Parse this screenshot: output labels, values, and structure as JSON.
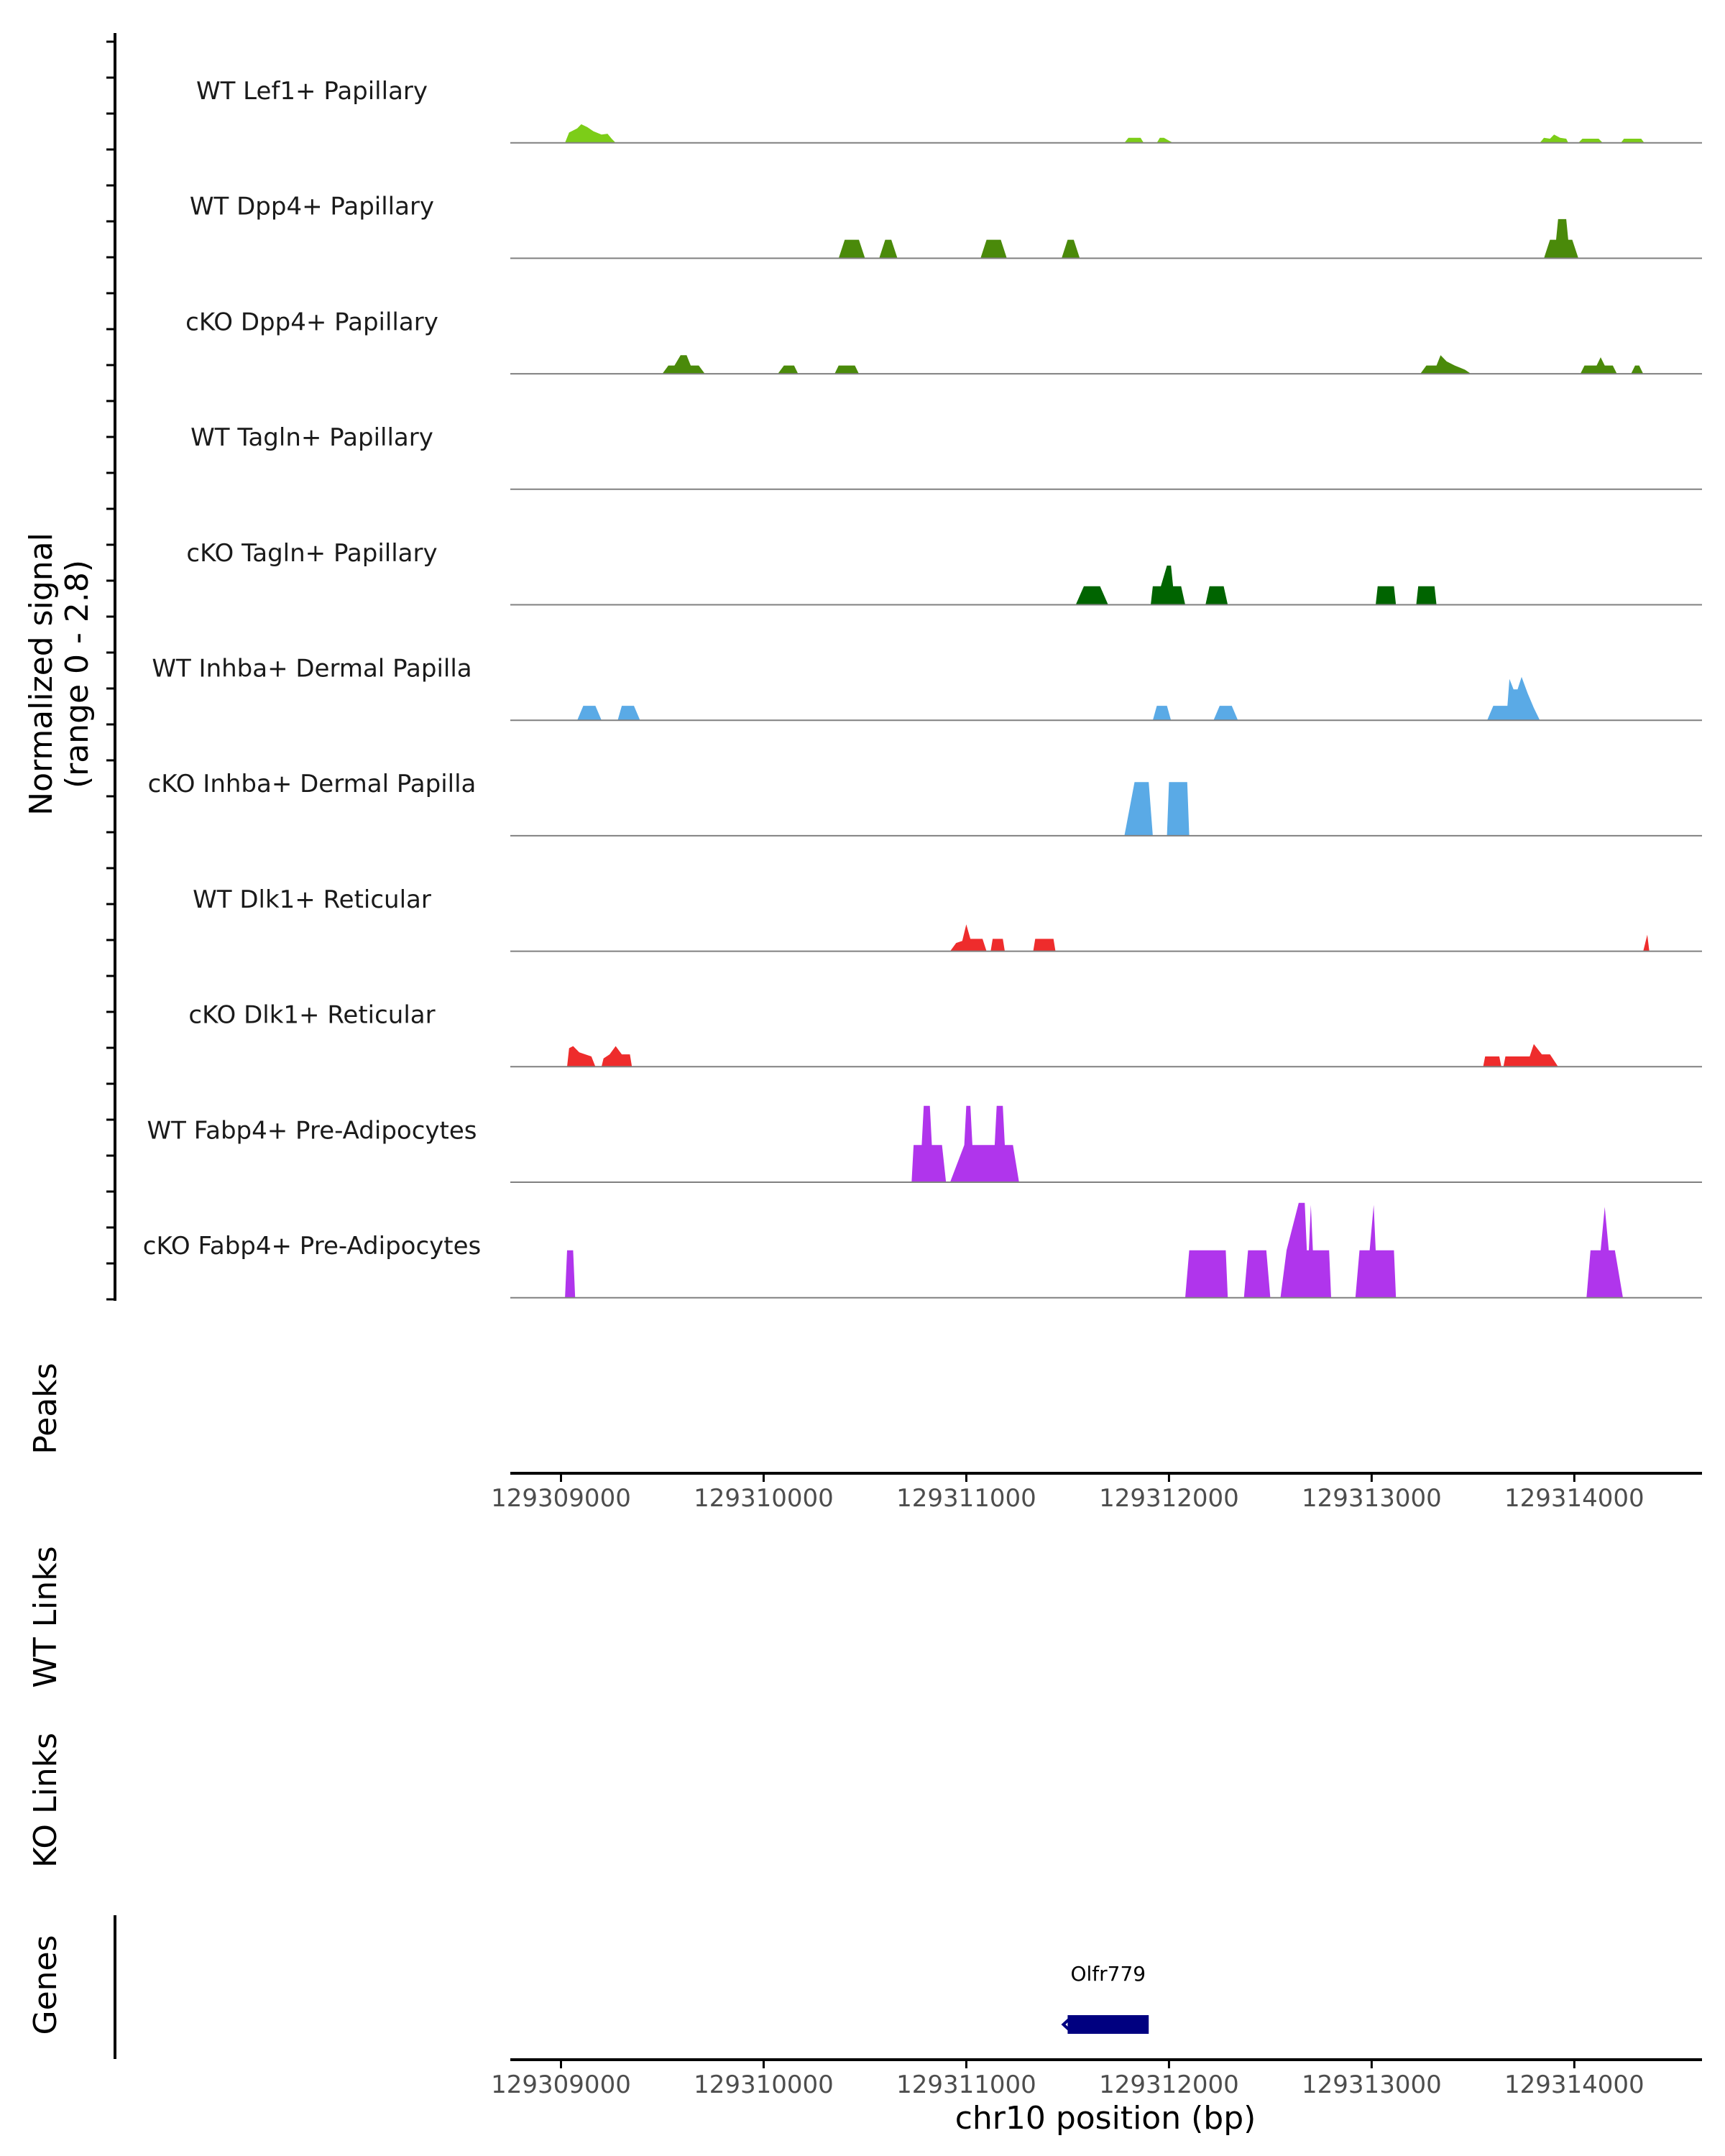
{
  "chart_data": {
    "type": "area",
    "title": "",
    "ylabel": "Normalized signal\n(range 0 - 2.8)",
    "ylim": [
      0,
      2.8
    ],
    "xlabel": "chr10 position (bp)",
    "xlim": [
      129308750,
      129314630
    ],
    "xticks": [
      129309000,
      129310000,
      129311000,
      129312000,
      129313000,
      129314000
    ],
    "xtick_labels": [
      "129309000",
      "129310000",
      "129311000",
      "129312000",
      "129313000",
      "129314000"
    ],
    "panel_labels": {
      "peaks": "Peaks",
      "wt_links": "WT Links",
      "ko_links": "KO Links",
      "genes": "Genes"
    },
    "tracks": [
      {
        "name": "WT Lef1+ Papillary",
        "color": "#7ccd18",
        "points": [
          [
            129309020,
            0
          ],
          [
            129309040,
            0.25
          ],
          [
            129309080,
            0.35
          ],
          [
            129309100,
            0.45
          ],
          [
            129309130,
            0.38
          ],
          [
            129309160,
            0.28
          ],
          [
            129309200,
            0.2
          ],
          [
            129309230,
            0.22
          ],
          [
            129309250,
            0.1
          ],
          [
            129309270,
            0
          ],
          [
            129311780,
            0
          ],
          [
            129311800,
            0.12
          ],
          [
            129311860,
            0.12
          ],
          [
            129311875,
            0
          ],
          [
            129311940,
            0
          ],
          [
            129311955,
            0.12
          ],
          [
            129311975,
            0.12
          ],
          [
            129312000,
            0.05
          ],
          [
            129312020,
            0
          ],
          [
            129313830,
            0
          ],
          [
            129313850,
            0.12
          ],
          [
            129313880,
            0.1
          ],
          [
            129313900,
            0.2
          ],
          [
            129313930,
            0.12
          ],
          [
            129313960,
            0.1
          ],
          [
            129313970,
            0
          ],
          [
            129314020,
            0
          ],
          [
            129314040,
            0.1
          ],
          [
            129314120,
            0.1
          ],
          [
            129314140,
            0
          ],
          [
            129314230,
            0
          ],
          [
            129314245,
            0.1
          ],
          [
            129314330,
            0.1
          ],
          [
            129314345,
            0
          ]
        ]
      },
      {
        "name": "WT Dpp4+ Papillary",
        "color": "#4a8a0a",
        "points": [
          [
            129310370,
            0
          ],
          [
            129310400,
            0.45
          ],
          [
            129310470,
            0.45
          ],
          [
            129310500,
            0
          ],
          [
            129310570,
            0
          ],
          [
            129310600,
            0.45
          ],
          [
            129310630,
            0.45
          ],
          [
            129310660,
            0
          ],
          [
            129311070,
            0
          ],
          [
            129311100,
            0.45
          ],
          [
            129311170,
            0.45
          ],
          [
            129311200,
            0
          ],
          [
            129311470,
            0
          ],
          [
            129311500,
            0.45
          ],
          [
            129311530,
            0.45
          ],
          [
            129311560,
            0
          ],
          [
            129313850,
            0
          ],
          [
            129313880,
            0.45
          ],
          [
            129313910,
            0.45
          ],
          [
            129313920,
            0.95
          ],
          [
            129313960,
            0.95
          ],
          [
            129313970,
            0.45
          ],
          [
            129313990,
            0.45
          ],
          [
            129314020,
            0
          ]
        ]
      },
      {
        "name": "cKO Dpp4+ Papillary",
        "color": "#4a8a0a",
        "points": [
          [
            129309500,
            0
          ],
          [
            129309530,
            0.2
          ],
          [
            129309560,
            0.2
          ],
          [
            129309590,
            0.45
          ],
          [
            129309620,
            0.45
          ],
          [
            129309640,
            0.2
          ],
          [
            129309680,
            0.2
          ],
          [
            129309710,
            0
          ],
          [
            129310070,
            0
          ],
          [
            129310100,
            0.2
          ],
          [
            129310150,
            0.2
          ],
          [
            129310170,
            0
          ],
          [
            129310350,
            0
          ],
          [
            129310370,
            0.2
          ],
          [
            129310450,
            0.2
          ],
          [
            129310470,
            0
          ],
          [
            129313240,
            0
          ],
          [
            129313270,
            0.2
          ],
          [
            129313320,
            0.2
          ],
          [
            129313340,
            0.45
          ],
          [
            129313370,
            0.3
          ],
          [
            129313410,
            0.2
          ],
          [
            129313460,
            0.1
          ],
          [
            129313490,
            0
          ],
          [
            129314030,
            0
          ],
          [
            129314050,
            0.2
          ],
          [
            129314110,
            0.2
          ],
          [
            129314130,
            0.4
          ],
          [
            129314150,
            0.2
          ],
          [
            129314190,
            0.2
          ],
          [
            129314210,
            0
          ],
          [
            129314280,
            0
          ],
          [
            129314300,
            0.2
          ],
          [
            129314320,
            0.2
          ],
          [
            129314340,
            0
          ]
        ]
      },
      {
        "name": "WT Tagln+ Papillary",
        "color": "#006400",
        "points": []
      },
      {
        "name": "cKO Tagln+ Papillary",
        "color": "#006400",
        "points": [
          [
            129311540,
            0
          ],
          [
            129311580,
            0.45
          ],
          [
            129311660,
            0.45
          ],
          [
            129311700,
            0
          ],
          [
            129311910,
            0
          ],
          [
            129311920,
            0.45
          ],
          [
            129311960,
            0.45
          ],
          [
            129311990,
            0.95
          ],
          [
            129312010,
            0.95
          ],
          [
            129312020,
            0.45
          ],
          [
            129312060,
            0.45
          ],
          [
            129312080,
            0
          ],
          [
            129312180,
            0
          ],
          [
            129312200,
            0.45
          ],
          [
            129312270,
            0.45
          ],
          [
            129312290,
            0
          ],
          [
            129313020,
            0
          ],
          [
            129313030,
            0.45
          ],
          [
            129313110,
            0.45
          ],
          [
            129313120,
            0
          ],
          [
            129313220,
            0
          ],
          [
            129313230,
            0.45
          ],
          [
            129313310,
            0.45
          ],
          [
            129313320,
            0
          ]
        ]
      },
      {
        "name": "WT Inhba+ Dermal Papilla",
        "color": "#5aaae6",
        "points": [
          [
            129309080,
            0
          ],
          [
            129309110,
            0.35
          ],
          [
            129309170,
            0.35
          ],
          [
            129309200,
            0
          ],
          [
            129309280,
            0
          ],
          [
            129309300,
            0.35
          ],
          [
            129309360,
            0.35
          ],
          [
            129309390,
            0
          ],
          [
            129311920,
            0
          ],
          [
            129311940,
            0.35
          ],
          [
            129311990,
            0.35
          ],
          [
            129312010,
            0
          ],
          [
            129312220,
            0
          ],
          [
            129312250,
            0.35
          ],
          [
            129312310,
            0.35
          ],
          [
            129312340,
            0
          ],
          [
            129313570,
            0
          ],
          [
            129313600,
            0.35
          ],
          [
            129313670,
            0.35
          ],
          [
            129313680,
            1.0
          ],
          [
            129313700,
            0.75
          ],
          [
            129313720,
            0.75
          ],
          [
            129313740,
            1.05
          ],
          [
            129313770,
            0.65
          ],
          [
            129313800,
            0.3
          ],
          [
            129313830,
            0
          ]
        ]
      },
      {
        "name": "cKO Inhba+ Dermal Papilla",
        "color": "#5aaae6",
        "points": [
          [
            129311780,
            0
          ],
          [
            129311830,
            1.3
          ],
          [
            129311900,
            1.3
          ],
          [
            129311920,
            0
          ],
          [
            129311990,
            0
          ],
          [
            129312000,
            1.3
          ],
          [
            129312090,
            1.3
          ],
          [
            129312100,
            0
          ]
        ]
      },
      {
        "name": "WT Dlk1+ Reticular",
        "color": "#ee2c2c",
        "points": [
          [
            129310920,
            0
          ],
          [
            129310950,
            0.2
          ],
          [
            129310980,
            0.25
          ],
          [
            129311000,
            0.65
          ],
          [
            129311020,
            0.3
          ],
          [
            129311080,
            0.3
          ],
          [
            129311100,
            0
          ],
          [
            129311120,
            0
          ],
          [
            129311130,
            0.3
          ],
          [
            129311180,
            0.3
          ],
          [
            129311190,
            0
          ],
          [
            129311330,
            0
          ],
          [
            129311340,
            0.3
          ],
          [
            129311430,
            0.3
          ],
          [
            129311440,
            0
          ],
          [
            129314340,
            0
          ],
          [
            129314360,
            0.4
          ],
          [
            129314370,
            0
          ]
        ]
      },
      {
        "name": "cKO Dlk1+ Reticular",
        "color": "#ee2c2c",
        "points": [
          [
            129309030,
            0
          ],
          [
            129309040,
            0.45
          ],
          [
            129309060,
            0.5
          ],
          [
            129309090,
            0.35
          ],
          [
            129309120,
            0.3
          ],
          [
            129309150,
            0.25
          ],
          [
            129309170,
            0
          ],
          [
            129309200,
            0
          ],
          [
            129309210,
            0.2
          ],
          [
            129309240,
            0.3
          ],
          [
            129309270,
            0.5
          ],
          [
            129309300,
            0.3
          ],
          [
            129309340,
            0.3
          ],
          [
            129309350,
            0
          ],
          [
            129313550,
            0
          ],
          [
            129313560,
            0.25
          ],
          [
            129313630,
            0.25
          ],
          [
            129313640,
            0
          ],
          [
            129313650,
            0
          ],
          [
            129313660,
            0.25
          ],
          [
            129313780,
            0.25
          ],
          [
            129313800,
            0.55
          ],
          [
            129313840,
            0.3
          ],
          [
            129313880,
            0.3
          ],
          [
            129313920,
            0
          ]
        ]
      },
      {
        "name": "WT Fabp4+ Pre-Adipocytes",
        "color": "#b035ec",
        "points": [
          [
            129310730,
            0
          ],
          [
            129310740,
            0.9
          ],
          [
            129310780,
            0.9
          ],
          [
            129310790,
            1.85
          ],
          [
            129310820,
            1.85
          ],
          [
            129310830,
            0.9
          ],
          [
            129310880,
            0.9
          ],
          [
            129310900,
            0
          ],
          [
            129310920,
            0
          ],
          [
            129310990,
            0.9
          ],
          [
            129311000,
            1.85
          ],
          [
            129311020,
            1.85
          ],
          [
            129311030,
            0.9
          ],
          [
            129311140,
            0.9
          ],
          [
            129311150,
            1.85
          ],
          [
            129311180,
            1.85
          ],
          [
            129311190,
            0.9
          ],
          [
            129311230,
            0.9
          ],
          [
            129311260,
            0
          ]
        ]
      },
      {
        "name": "cKO Fabp4+ Pre-Adipocytes",
        "color": "#b035ec",
        "points": [
          [
            129309020,
            0
          ],
          [
            129309030,
            1.15
          ],
          [
            129309060,
            1.15
          ],
          [
            129309070,
            0
          ],
          [
            129312080,
            0
          ],
          [
            129312100,
            1.15
          ],
          [
            129312280,
            1.15
          ],
          [
            129312290,
            0
          ],
          [
            129312370,
            0
          ],
          [
            129312390,
            1.15
          ],
          [
            129312480,
            1.15
          ],
          [
            129312500,
            0
          ],
          [
            129312550,
            0
          ],
          [
            129312580,
            1.15
          ],
          [
            129312640,
            2.3
          ],
          [
            129312670,
            2.3
          ],
          [
            129312680,
            1.15
          ],
          [
            129312690,
            1.15
          ],
          [
            129312700,
            2.25
          ],
          [
            129312710,
            1.15
          ],
          [
            129312790,
            1.15
          ],
          [
            129312800,
            0
          ],
          [
            129312920,
            0
          ],
          [
            129312940,
            1.15
          ],
          [
            129312990,
            1.15
          ],
          [
            129313010,
            2.25
          ],
          [
            129313020,
            1.15
          ],
          [
            129313110,
            1.15
          ],
          [
            129313120,
            0
          ],
          [
            129314060,
            0
          ],
          [
            129314080,
            1.15
          ],
          [
            129314130,
            1.15
          ],
          [
            129314150,
            2.2
          ],
          [
            129314170,
            1.15
          ],
          [
            129314200,
            1.15
          ],
          [
            129314240,
            0
          ]
        ]
      }
    ],
    "genes": [
      {
        "name": "Olfr779",
        "start": 129311500,
        "end": 129311900,
        "strand": "-",
        "color": "#000080"
      }
    ]
  }
}
